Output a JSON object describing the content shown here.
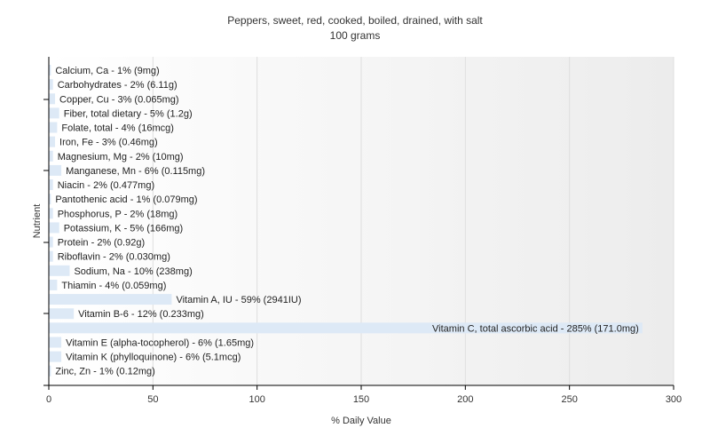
{
  "chart_data": {
    "type": "bar",
    "orientation": "horizontal",
    "title": "Peppers, sweet, red, cooked, boiled, drained, with salt",
    "subtitle": "100 grams",
    "xlabel": "% Daily Value",
    "ylabel": "Nutrient",
    "xlim": [
      0,
      300
    ],
    "xticks": [
      "0",
      "50",
      "100",
      "150",
      "200",
      "250",
      "300"
    ],
    "grid": true,
    "bar_color": "#dde9f6",
    "categories": [
      "Calcium, Ca",
      "Carbohydrates",
      "Copper, Cu",
      "Fiber, total dietary",
      "Folate, total",
      "Iron, Fe",
      "Magnesium, Mg",
      "Manganese, Mn",
      "Niacin",
      "Pantothenic acid",
      "Phosphorus, P",
      "Potassium, K",
      "Protein",
      "Riboflavin",
      "Sodium, Na",
      "Thiamin",
      "Vitamin A, IU",
      "Vitamin B-6",
      "Vitamin C, total ascorbic acid",
      "Vitamin E (alpha-tocopherol)",
      "Vitamin K (phylloquinone)",
      "Zinc, Zn"
    ],
    "values": [
      1,
      2,
      3,
      5,
      4,
      3,
      2,
      6,
      2,
      1,
      2,
      5,
      2,
      2,
      10,
      4,
      59,
      12,
      285,
      6,
      6,
      1
    ],
    "labels": [
      "Calcium, Ca - 1% (9mg)",
      "Carbohydrates - 2% (6.11g)",
      "Copper, Cu - 3% (0.065mg)",
      "Fiber, total dietary - 5% (1.2g)",
      "Folate, total - 4% (16mcg)",
      "Iron, Fe - 3% (0.46mg)",
      "Magnesium, Mg - 2% (10mg)",
      "Manganese, Mn - 6% (0.115mg)",
      "Niacin - 2% (0.477mg)",
      "Pantothenic acid - 1% (0.079mg)",
      "Phosphorus, P - 2% (18mg)",
      "Potassium, K - 5% (166mg)",
      "Protein - 2% (0.92g)",
      "Riboflavin - 2% (0.030mg)",
      "Sodium, Na - 10% (238mg)",
      "Thiamin - 4% (0.059mg)",
      "Vitamin A, IU - 59% (2941IU)",
      "Vitamin B-6 - 12% (0.233mg)",
      "Vitamin C, total ascorbic acid - 285% (171.0mg)",
      "Vitamin E (alpha-tocopherol) - 6% (1.65mg)",
      "Vitamin K (phylloquinone) - 6% (5.1mcg)",
      "Zinc, Zn - 1% (0.12mg)"
    ]
  }
}
